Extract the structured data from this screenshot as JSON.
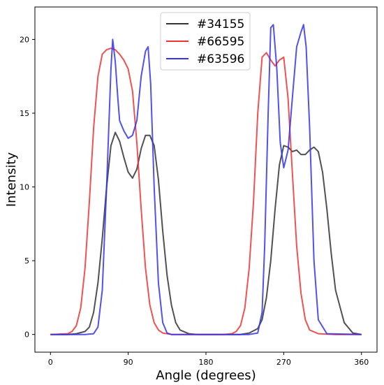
{
  "chart_data": {
    "type": "line",
    "xlabel": "Angle (degrees)",
    "ylabel": "Intensity",
    "xlim": [
      -18,
      378
    ],
    "ylim": [
      -1.2,
      22.2
    ],
    "xticks": [
      0,
      90,
      180,
      270,
      360
    ],
    "yticks": [
      0,
      5,
      10,
      15,
      20
    ],
    "grid": false,
    "legend_position": "top-center",
    "series": [
      {
        "name": "#34155",
        "color": "#333333",
        "x": [
          0,
          20,
          30,
          40,
          45,
          50,
          55,
          60,
          65,
          70,
          75,
          80,
          85,
          90,
          95,
          100,
          105,
          110,
          115,
          120,
          125,
          130,
          135,
          140,
          145,
          150,
          160,
          170,
          180,
          200,
          220,
          230,
          240,
          245,
          250,
          255,
          260,
          265,
          270,
          275,
          280,
          285,
          290,
          295,
          300,
          305,
          310,
          315,
          320,
          325,
          330,
          340,
          350,
          360
        ],
        "y": [
          0,
          0,
          0.05,
          0.2,
          0.5,
          1.5,
          3.5,
          6.5,
          10,
          12.8,
          13.7,
          13.1,
          12,
          11,
          10.6,
          11.2,
          12.6,
          13.5,
          13.5,
          12.8,
          10.5,
          7,
          4,
          2,
          0.8,
          0.3,
          0.05,
          0,
          0,
          0,
          0,
          0.1,
          0.4,
          1,
          2.5,
          5,
          8.5,
          11.5,
          12.8,
          12.7,
          12.4,
          12.5,
          12.2,
          12.2,
          12.5,
          12.7,
          12.4,
          11,
          8.5,
          5.5,
          3,
          0.8,
          0.1,
          0
        ]
      },
      {
        "name": "#66595",
        "color": "#ee3333",
        "x": [
          0,
          20,
          25,
          30,
          35,
          40,
          45,
          50,
          55,
          60,
          65,
          70,
          75,
          80,
          85,
          90,
          95,
          100,
          105,
          110,
          115,
          120,
          125,
          130,
          140,
          150,
          180,
          200,
          210,
          215,
          220,
          225,
          230,
          235,
          240,
          245,
          250,
          255,
          260,
          265,
          270,
          275,
          280,
          285,
          290,
          295,
          300,
          310,
          330,
          360
        ],
        "y": [
          0,
          0.05,
          0.2,
          0.6,
          1.8,
          4.5,
          9,
          14,
          17.5,
          19,
          19.3,
          19.4,
          19.3,
          19,
          18.6,
          18,
          16.5,
          13,
          8.5,
          4.5,
          2,
          0.8,
          0.3,
          0.1,
          0,
          0,
          0,
          0,
          0.05,
          0.2,
          0.6,
          1.8,
          4.5,
          9,
          15,
          18.8,
          19.1,
          18.6,
          18.2,
          18.6,
          18.8,
          16,
          11,
          6,
          2.8,
          1,
          0.3,
          0.05,
          0,
          0
        ]
      },
      {
        "name": "#63596",
        "color": "#3333ee",
        "x": [
          0,
          40,
          50,
          55,
          60,
          65,
          70,
          72,
          75,
          78,
          80,
          85,
          90,
          95,
          100,
          105,
          110,
          113,
          116,
          120,
          125,
          130,
          135,
          140,
          150,
          180,
          230,
          240,
          245,
          248,
          252,
          255,
          258,
          262,
          266,
          270,
          275,
          280,
          285,
          290,
          293,
          296,
          300,
          305,
          310,
          320,
          360
        ],
        "y": [
          0,
          0,
          0.05,
          0.5,
          3,
          10,
          18,
          20,
          18.5,
          16,
          14.5,
          13.8,
          13.3,
          13.5,
          14.5,
          17.5,
          19.2,
          19.5,
          17,
          10,
          3.5,
          0.8,
          0.1,
          0,
          0,
          0,
          0,
          0.1,
          1.5,
          6,
          15,
          20.8,
          21,
          18,
          13,
          11.3,
          12.5,
          16,
          19.5,
          20.5,
          21,
          19.5,
          14,
          5,
          1,
          0.05,
          0
        ]
      }
    ]
  }
}
